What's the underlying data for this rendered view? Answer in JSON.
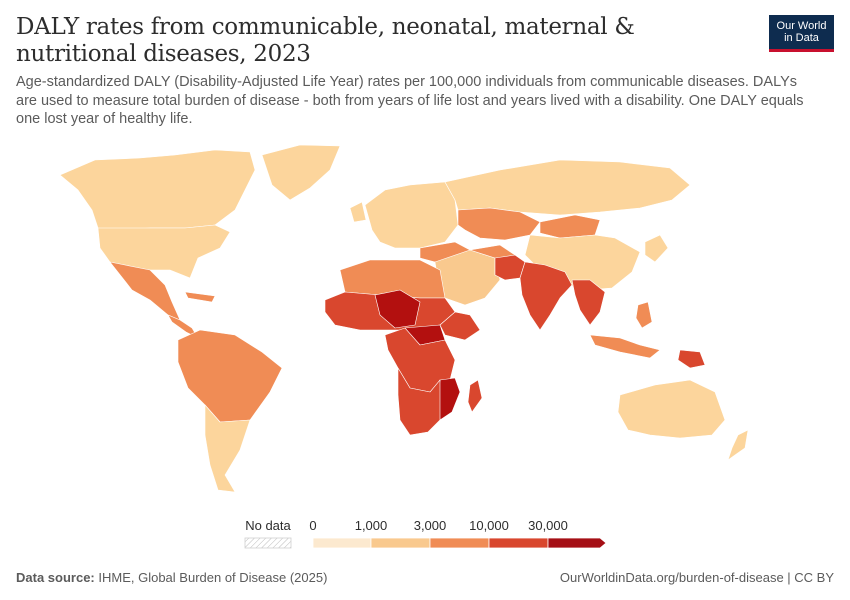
{
  "header": {
    "title": "DALY rates from communicable, neonatal, maternal & nutritional diseases, 2023",
    "subtitle": "Age-standardized DALY (Disability-Adjusted Life Year) rates per 100,000 individuals from communicable diseases. DALYs are used to measure total burden of disease - both from years of life lost and years lived with a disability. One DALY equals one lost year of healthy life."
  },
  "logo": {
    "line1": "Our World",
    "line2": "in Data"
  },
  "legend": {
    "no_data_label": "No data",
    "bins": [
      {
        "label": "0",
        "color": "#fce9cf"
      },
      {
        "label": "1,000",
        "color": "#f9c98e"
      },
      {
        "label": "3,000",
        "color": "#f08c55"
      },
      {
        "label": "10,000",
        "color": "#d9472e"
      },
      {
        "label": "30,000",
        "color": "#a50f15"
      }
    ]
  },
  "colors": {
    "low": "#fcd59c",
    "mid": "#f08c55",
    "high": "#d9472e",
    "highest": "#b3100f",
    "border": "#ffffff"
  },
  "footer": {
    "source_label": "Data source:",
    "source_text": "IHME, Global Burden of Disease (2025)",
    "url_text": "OurWorldinData.org/burden-of-disease | CC BY"
  }
}
